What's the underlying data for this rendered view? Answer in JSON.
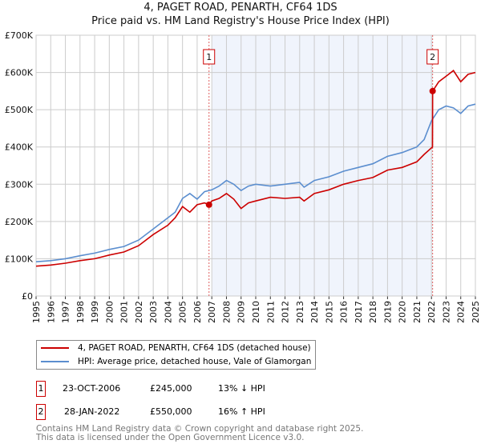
{
  "header": {
    "title": "4, PAGET ROAD, PENARTH, CF64 1DS",
    "subtitle": "Price paid vs. HM Land Registry's House Price Index (HPI)"
  },
  "colors": {
    "property": "#cc0000",
    "hpi": "#5b8ecf",
    "shade": "#f0f4fc"
  },
  "chart_data": {
    "type": "line",
    "title": "4, PAGET ROAD, PENARTH, CF64 1DS",
    "subtitle": "Price paid vs. HM Land Registry's House Price Index (HPI)",
    "xlim": [
      1995,
      2025
    ],
    "ylim": [
      0,
      700000
    ],
    "x_ticks": [
      "1995",
      "1996",
      "1997",
      "1998",
      "1999",
      "2000",
      "2001",
      "2002",
      "2003",
      "2004",
      "2005",
      "2006",
      "2007",
      "2008",
      "2009",
      "2010",
      "2011",
      "2012",
      "2013",
      "2014",
      "2015",
      "2016",
      "2017",
      "2018",
      "2019",
      "2020",
      "2021",
      "2022",
      "2023",
      "2024",
      "2025"
    ],
    "y_ticks": [
      {
        "v": 0,
        "label": "£0"
      },
      {
        "v": 100000,
        "label": "£100K"
      },
      {
        "v": 200000,
        "label": "£200K"
      },
      {
        "v": 300000,
        "label": "£300K"
      },
      {
        "v": 400000,
        "label": "£400K"
      },
      {
        "v": 500000,
        "label": "£500K"
      },
      {
        "v": 600000,
        "label": "£600K"
      },
      {
        "v": 700000,
        "label": "£700K"
      }
    ],
    "grid": true,
    "series": [
      {
        "name": "4, PAGET ROAD, PENARTH, CF64 1DS (detached house)",
        "color": "#cc0000",
        "x": [
          1995,
          1996,
          1997,
          1998,
          1999,
          2000,
          2001,
          2002,
          2003,
          2004,
          2004.5,
          2005,
          2005.5,
          2006,
          2006.5,
          2006.81,
          2007,
          2007.5,
          2008,
          2008.5,
          2009,
          2009.5,
          2010,
          2011,
          2012,
          2013,
          2013.3,
          2014,
          2015,
          2016,
          2017,
          2018,
          2019,
          2020,
          2021,
          2021.5,
          2022.07,
          2022.08,
          2022.5,
          2023,
          2023.5,
          2024,
          2024.5,
          2025
        ],
        "y": [
          80000,
          83000,
          88000,
          95000,
          100000,
          110000,
          118000,
          135000,
          165000,
          190000,
          210000,
          240000,
          225000,
          245000,
          250000,
          245000,
          255000,
          262000,
          275000,
          260000,
          235000,
          250000,
          255000,
          265000,
          262000,
          265000,
          255000,
          275000,
          285000,
          300000,
          310000,
          318000,
          338000,
          345000,
          360000,
          380000,
          400000,
          550000,
          575000,
          590000,
          605000,
          575000,
          595000,
          600000
        ]
      },
      {
        "name": "HPI: Average price, detached house, Vale of Glamorgan",
        "color": "#5b8ecf",
        "x": [
          1995,
          1996,
          1997,
          1998,
          1999,
          2000,
          2001,
          2002,
          2003,
          2004,
          2004.5,
          2005,
          2005.5,
          2006,
          2006.5,
          2007,
          2007.5,
          2008,
          2008.5,
          2009,
          2009.5,
          2010,
          2011,
          2012,
          2013,
          2013.3,
          2014,
          2015,
          2016,
          2017,
          2018,
          2019,
          2020,
          2021,
          2021.5,
          2022,
          2022.5,
          2023,
          2023.5,
          2024,
          2024.5,
          2025
        ],
        "y": [
          92000,
          95000,
          100000,
          108000,
          115000,
          125000,
          133000,
          150000,
          180000,
          210000,
          225000,
          262000,
          275000,
          260000,
          280000,
          285000,
          295000,
          310000,
          300000,
          283000,
          295000,
          300000,
          295000,
          300000,
          305000,
          292000,
          310000,
          320000,
          335000,
          345000,
          355000,
          375000,
          385000,
          400000,
          420000,
          470000,
          500000,
          510000,
          505000,
          490000,
          510000,
          515000
        ]
      }
    ],
    "annotations": [
      {
        "label": "1",
        "x": 2006.81,
        "y": 245000
      },
      {
        "label": "2",
        "x": 2022.08,
        "y": 550000
      }
    ]
  },
  "legend": {
    "items": [
      "4, PAGET ROAD, PENARTH, CF64 1DS (detached house)",
      "HPI: Average price, detached house, Vale of Glamorgan"
    ]
  },
  "sales": [
    {
      "num": "1",
      "date": "23-OCT-2006",
      "price": "£245,000",
      "hpi": "13% ↓ HPI"
    },
    {
      "num": "2",
      "date": "28-JAN-2022",
      "price": "£550,000",
      "hpi": "16% ↑ HPI"
    }
  ],
  "footer": {
    "line1": "Contains HM Land Registry data © Crown copyright and database right 2025.",
    "line2": "This data is licensed under the Open Government Licence v3.0."
  }
}
